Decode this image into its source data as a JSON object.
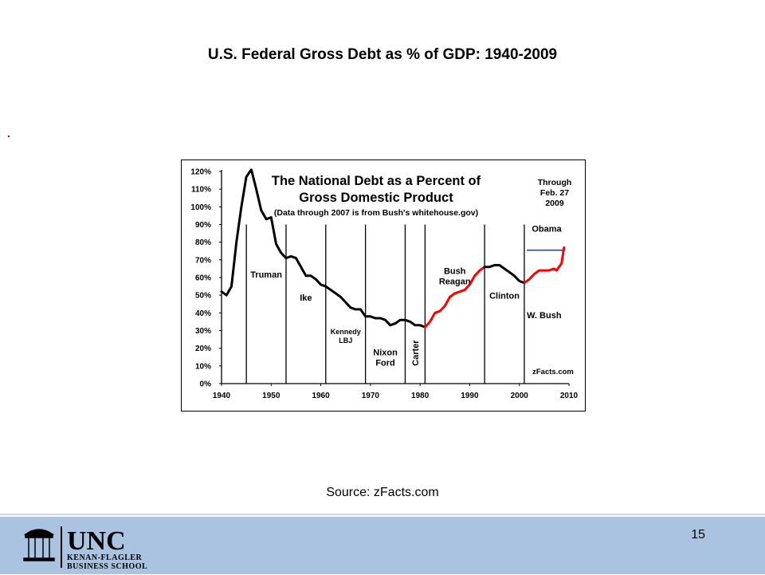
{
  "slide": {
    "title": "U.S. Federal Gross Debt as % of GDP: 1940-2009",
    "source": "Source: zFacts.com",
    "page_number": "15"
  },
  "logo": {
    "text_main": "UNC",
    "text_line2": "KENAN-FLAGLER",
    "text_line3": "BUSINESS SCHOOL"
  },
  "chart_data": {
    "type": "line",
    "title": "The National Debt as a Percent of",
    "title_line2": "Gross Domestic Product",
    "subtitle": "(Data through 2007 is from Bush's whitehouse.gov)",
    "note_lines": [
      "Through",
      "Feb. 27",
      "2009"
    ],
    "credit": "zFacts.com",
    "xlim": [
      1940,
      2010
    ],
    "ylim": [
      0,
      120
    ],
    "x_ticks": [
      "1940",
      "1950",
      "1960",
      "1970",
      "1980",
      "1990",
      "2000",
      "2010"
    ],
    "y_ticks": [
      "0%",
      "10%",
      "20%",
      "30%",
      "40%",
      "50%",
      "60%",
      "70%",
      "80%",
      "90%",
      "100%",
      "110%",
      "120%"
    ],
    "grid": false,
    "presidency_boundaries": [
      1945,
      1953,
      1961,
      1969,
      1977,
      1981,
      1993,
      2001
    ],
    "presidency_labels": [
      {
        "lines": [
          "Truman"
        ],
        "x": 1949,
        "y": 60
      },
      {
        "lines": [
          "Ike"
        ],
        "x": 1957,
        "y": 47
      },
      {
        "lines": [
          "Kennedy",
          "LBJ"
        ],
        "x": 1965,
        "y": 28
      },
      {
        "lines": [
          "Nixon",
          "Ford"
        ],
        "x": 1973,
        "y": 16
      },
      {
        "lines": [
          "Carter"
        ],
        "x": 1979,
        "y": 10,
        "rotated": true
      },
      {
        "lines": [
          "Bush",
          "Reagan"
        ],
        "x": 1987,
        "y": 62
      },
      {
        "lines": [
          "Clinton"
        ],
        "x": 1997,
        "y": 48
      },
      {
        "lines": [
          "W. Bush"
        ],
        "x": 2005,
        "y": 37
      },
      {
        "lines": [
          "Obama"
        ],
        "x": 2005.5,
        "y": 86
      }
    ],
    "obama_marker": {
      "x": [
        2001.5,
        2009.2
      ],
      "y": 75.5,
      "color": "#1f4e9a"
    },
    "series": [
      {
        "color": "#000000",
        "x": [
          1940,
          1941,
          1942,
          1943,
          1944,
          1945,
          1946,
          1947,
          1948,
          1949,
          1950,
          1951,
          1952,
          1953,
          1954,
          1955,
          1956,
          1957,
          1958,
          1959,
          1960,
          1961,
          1962,
          1963,
          1964,
          1965,
          1966,
          1967,
          1968,
          1969,
          1970,
          1971,
          1972,
          1973,
          1974,
          1975,
          1976,
          1977,
          1978,
          1979,
          1980,
          1981
        ],
        "y": [
          52,
          50,
          55,
          80,
          100,
          117,
          121,
          110,
          98,
          93,
          94,
          79,
          74,
          71,
          72,
          71,
          66,
          61,
          61,
          59,
          56,
          55,
          53,
          51,
          49,
          46,
          43,
          42,
          42,
          38,
          38,
          37,
          37,
          36,
          33,
          34,
          36,
          36,
          35,
          33,
          33,
          32
        ]
      },
      {
        "color": "#ff0000",
        "x": [
          1981,
          1982,
          1983,
          1984,
          1985,
          1986,
          1987,
          1988,
          1989,
          1990,
          1991,
          1992,
          1993
        ],
        "y": [
          32,
          35,
          40,
          41,
          44,
          49,
          51,
          52,
          53,
          56,
          61,
          64,
          66
        ]
      },
      {
        "color": "#000000",
        "x": [
          1993,
          1994,
          1995,
          1996,
          1997,
          1998,
          1999,
          2000,
          2001
        ],
        "y": [
          66,
          66,
          67,
          67,
          65,
          63,
          61,
          58,
          57
        ]
      },
      {
        "color": "#ff0000",
        "x": [
          2001,
          2002,
          2003,
          2004,
          2005,
          2006,
          2007,
          2007.5,
          2008,
          2008.5,
          2009
        ],
        "y": [
          57,
          59,
          62,
          64,
          64,
          64,
          65,
          64,
          66,
          68,
          77
        ]
      }
    ]
  }
}
